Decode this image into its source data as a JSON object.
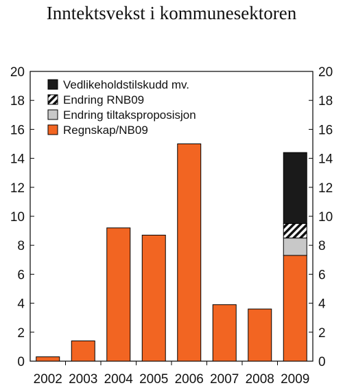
{
  "chart_data": {
    "type": "bar",
    "stacked": true,
    "title": "Inntektsvekst i kommunesektoren",
    "categories": [
      "2002",
      "2003",
      "2004",
      "2005",
      "2006",
      "2007",
      "2008",
      "2009"
    ],
    "series": [
      {
        "name": "Regnskap/NB09",
        "color": "#f26522",
        "values": [
          0.3,
          1.4,
          9.2,
          8.7,
          15.0,
          3.9,
          3.6,
          7.3
        ]
      },
      {
        "name": "Endring tiltaksproposisjon",
        "color": "#c8c8c8",
        "values": [
          0,
          0,
          0,
          0,
          0,
          0,
          0,
          1.2
        ]
      },
      {
        "name": "Endring RNB09",
        "color": "#ffffff",
        "pattern": "diagonal-hatch",
        "values": [
          0,
          0,
          0,
          0,
          0,
          0,
          0,
          1.0
        ]
      },
      {
        "name": "Vedlikeholdstilskudd mv.",
        "color": "#1a1a1a",
        "values": [
          0,
          0,
          0,
          0,
          0,
          0,
          0,
          4.9
        ]
      }
    ],
    "legend_order": [
      "Vedlikeholdstilskudd mv.",
      "Endring RNB09",
      "Endring tiltaksproposisjon",
      "Regnskap/NB09"
    ],
    "ylim": [
      0,
      20
    ],
    "yticks": [
      "0",
      "2",
      "4",
      "6",
      "8",
      "10",
      "12",
      "14",
      "16",
      "18",
      "20"
    ],
    "ytick_values": [
      0,
      2,
      4,
      6,
      8,
      10,
      12,
      14,
      16,
      18,
      20
    ],
    "grid": false,
    "legend_position": "top-left",
    "xlabel": "",
    "ylabel": ""
  }
}
